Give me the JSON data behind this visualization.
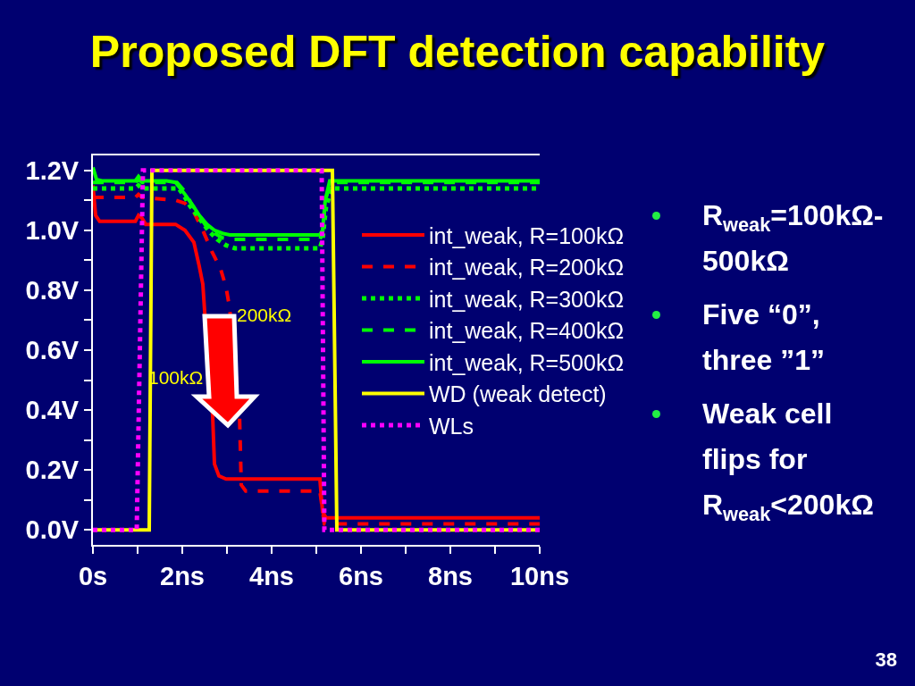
{
  "chart_data": {
    "type": "line",
    "title": "Proposed DFT detection capability",
    "xlim": [
      0,
      10
    ],
    "xticks": [
      {
        "value": 0,
        "label": "0s"
      },
      {
        "value": 1,
        "label": null
      },
      {
        "value": 2,
        "label": "2ns"
      },
      {
        "value": 3,
        "label": null
      },
      {
        "value": 4,
        "label": "4ns"
      },
      {
        "value": 5,
        "label": null
      },
      {
        "value": 6,
        "label": "6ns"
      },
      {
        "value": 7,
        "label": null
      },
      {
        "value": 8,
        "label": "8ns"
      },
      {
        "value": 9,
        "label": null
      },
      {
        "value": 10,
        "label": "10ns"
      }
    ],
    "ylim": [
      -0.05,
      1.25
    ],
    "yticks": [
      {
        "value": 0,
        "label": "0.0V"
      },
      {
        "value": 0.1,
        "label": null
      },
      {
        "value": 0.2,
        "label": "0.2V"
      },
      {
        "value": 0.3,
        "label": null
      },
      {
        "value": 0.4,
        "label": "0.4V"
      },
      {
        "value": 0.5,
        "label": null
      },
      {
        "value": 0.6,
        "label": "0.6V"
      },
      {
        "value": 0.7,
        "label": null
      },
      {
        "value": 0.8,
        "label": "0.8V"
      },
      {
        "value": 0.9,
        "label": null
      },
      {
        "value": 1.0,
        "label": "1.0V"
      },
      {
        "value": 1.1,
        "label": null
      },
      {
        "value": 1.2,
        "label": "1.2V"
      }
    ],
    "legend": "top right",
    "series": [
      {
        "name": "int_weak, R=100kΩ",
        "color": "#ff0000",
        "line_style": "solid",
        "x": [
          0,
          0.06,
          0.15,
          0.95,
          1.02,
          1.1,
          1.18,
          1.85,
          2.06,
          2.26,
          2.38,
          2.46,
          2.5,
          2.68,
          2.72,
          2.82,
          2.98,
          5.08,
          5.14,
          5.22,
          10
        ],
        "values": [
          1.15,
          1.05,
          1.03,
          1.03,
          1.05,
          1.04,
          1.02,
          1.02,
          1.0,
          0.96,
          0.88,
          0.82,
          0.73,
          0.38,
          0.22,
          0.18,
          0.17,
          0.17,
          0.06,
          0.04,
          0.04
        ]
      },
      {
        "name": "int_weak, R=200kΩ",
        "color": "#ff0000",
        "line_style": "dashed",
        "x": [
          0,
          0.95,
          1.02,
          1.1,
          1.86,
          2.06,
          2.26,
          2.46,
          2.66,
          2.86,
          2.98,
          3.06,
          3.28,
          3.32,
          3.42,
          5.08,
          5.18,
          10
        ],
        "values": [
          1.11,
          1.11,
          1.12,
          1.11,
          1.1,
          1.09,
          1.06,
          1.0,
          0.93,
          0.87,
          0.81,
          0.74,
          0.39,
          0.15,
          0.13,
          0.13,
          0.02,
          0.02
        ]
      },
      {
        "name": "int_weak, R=300kΩ",
        "color": "#00ff00",
        "line_style": "dotted",
        "x": [
          0,
          0.95,
          1.02,
          1.1,
          1.92,
          2.06,
          2.18,
          2.38,
          2.58,
          2.78,
          2.98,
          3.18,
          5.08,
          5.14,
          5.22,
          5.35,
          10
        ],
        "values": [
          1.14,
          1.14,
          1.15,
          1.14,
          1.14,
          1.11,
          1.08,
          1.04,
          1.0,
          0.97,
          0.95,
          0.94,
          0.94,
          0.97,
          1.08,
          1.14,
          1.14
        ]
      },
      {
        "name": "int_weak, R=400kΩ",
        "color": "#00ff00",
        "line_style": "dashed",
        "x": [
          0,
          0.95,
          1.02,
          1.1,
          1.88,
          2.06,
          2.2,
          2.38,
          2.55,
          2.72,
          2.9,
          3.1,
          5.08,
          5.14,
          5.2,
          5.32,
          10
        ],
        "values": [
          1.16,
          1.16,
          1.17,
          1.16,
          1.16,
          1.13,
          1.09,
          1.05,
          1.01,
          0.99,
          0.975,
          0.97,
          0.97,
          0.99,
          1.1,
          1.16,
          1.16
        ]
      },
      {
        "name": "int_weak, R=500kΩ",
        "color": "#00ff00",
        "line_style": "solid",
        "x": [
          0,
          0.08,
          0.2,
          0.95,
          1.02,
          1.1,
          1.65,
          1.85,
          2.06,
          2.25,
          2.38,
          2.55,
          2.72,
          2.9,
          3.06,
          5.08,
          5.14,
          5.2,
          5.3,
          10
        ],
        "values": [
          1.21,
          1.17,
          1.165,
          1.165,
          1.18,
          1.165,
          1.165,
          1.16,
          1.12,
          1.08,
          1.05,
          1.02,
          1.0,
          0.99,
          0.985,
          0.985,
          1.0,
          1.1,
          1.165,
          1.165
        ]
      },
      {
        "name": "WD (weak detect)",
        "color": "#ffff00",
        "line_style": "solid",
        "x": [
          0,
          1.26,
          1.32,
          5.36,
          5.46,
          10
        ],
        "values": [
          0,
          0,
          1.2,
          1.2,
          0,
          0
        ]
      },
      {
        "name": "WLs",
        "color": "#ff00ff",
        "line_style": "dotted",
        "x": [
          0,
          0.98,
          1.12,
          5.12,
          5.18,
          10
        ],
        "values": [
          0,
          0,
          1.2,
          1.2,
          0,
          0
        ]
      }
    ],
    "annotations": [
      "200kΩ",
      "100kΩ",
      "R$_{weak}$=100kΩ-500kΩ",
      "Five “0”, three ”1”",
      "Weak cell flips for R$_{weak}$<200kΩ",
      "38"
    ]
  }
}
